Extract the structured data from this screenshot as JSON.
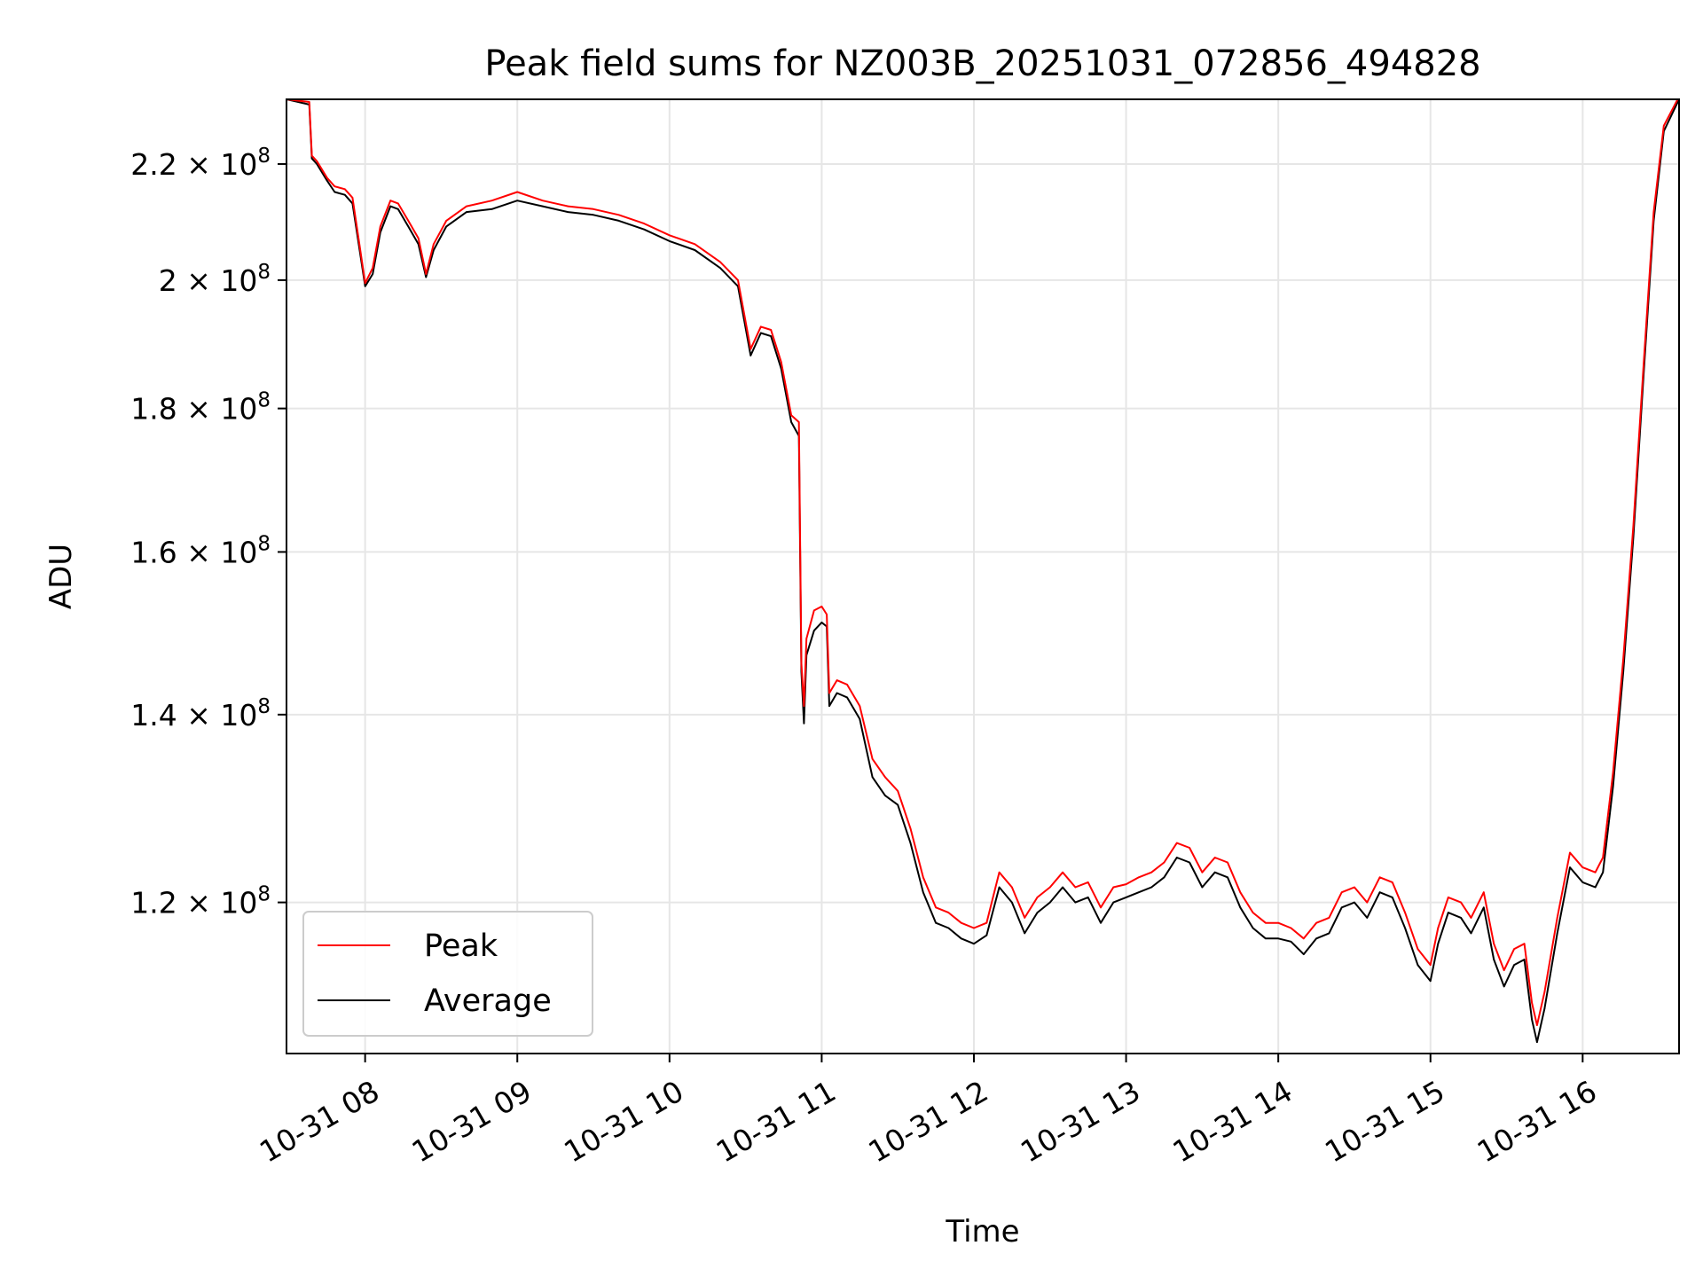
{
  "chart_data": {
    "type": "line",
    "title": "Peak field sums for NZ003B_20251031_072856_494828",
    "xlabel": "Time",
    "ylabel": "ADU",
    "y_scale": "log",
    "ylim": [
      106000000,
      232000000
    ],
    "xlim": [
      "2025-10-31T07:29",
      "2025-10-31T16:38"
    ],
    "grid": true,
    "legend_position": "lower-left",
    "x_ticks": [
      {
        "t": "2025-10-31T08:00",
        "label": "10-31 08"
      },
      {
        "t": "2025-10-31T09:00",
        "label": "10-31 09"
      },
      {
        "t": "2025-10-31T10:00",
        "label": "10-31 10"
      },
      {
        "t": "2025-10-31T11:00",
        "label": "10-31 11"
      },
      {
        "t": "2025-10-31T12:00",
        "label": "10-31 12"
      },
      {
        "t": "2025-10-31T13:00",
        "label": "10-31 13"
      },
      {
        "t": "2025-10-31T14:00",
        "label": "10-31 14"
      },
      {
        "t": "2025-10-31T15:00",
        "label": "10-31 15"
      },
      {
        "t": "2025-10-31T16:00",
        "label": "10-31 16"
      }
    ],
    "y_ticks": [
      {
        "v": 120000000,
        "mant": "1.2",
        "exp": "8"
      },
      {
        "v": 140000000,
        "mant": "1.4",
        "exp": "8"
      },
      {
        "v": 160000000,
        "mant": "1.6",
        "exp": "8"
      },
      {
        "v": 180000000,
        "mant": "1.8",
        "exp": "8"
      },
      {
        "v": 200000000,
        "mant": "2",
        "exp": "8"
      },
      {
        "v": 220000000,
        "mant": "2.2",
        "exp": "8"
      }
    ],
    "series": [
      {
        "name": "Average",
        "color": "#000000",
        "points": [
          [
            "2025-10-31T07:29",
            232000000
          ],
          [
            "2025-10-31T07:38",
            231000000
          ],
          [
            "2025-10-31T07:39",
            221000000
          ],
          [
            "2025-10-31T07:41",
            220000000
          ],
          [
            "2025-10-31T07:45",
            217000000
          ],
          [
            "2025-10-31T07:48",
            215000000
          ],
          [
            "2025-10-31T07:52",
            214500000
          ],
          [
            "2025-10-31T07:55",
            213000000
          ],
          [
            "2025-10-31T08:00",
            199000000
          ],
          [
            "2025-10-31T08:03",
            201000000
          ],
          [
            "2025-10-31T08:06",
            208000000
          ],
          [
            "2025-10-31T08:10",
            212500000
          ],
          [
            "2025-10-31T08:13",
            212000000
          ],
          [
            "2025-10-31T08:17",
            209000000
          ],
          [
            "2025-10-31T08:21",
            206000000
          ],
          [
            "2025-10-31T08:24",
            200500000
          ],
          [
            "2025-10-31T08:27",
            205000000
          ],
          [
            "2025-10-31T08:32",
            209000000
          ],
          [
            "2025-10-31T08:40",
            211500000
          ],
          [
            "2025-10-31T08:50",
            212000000
          ],
          [
            "2025-10-31T09:00",
            213500000
          ],
          [
            "2025-10-31T09:10",
            212500000
          ],
          [
            "2025-10-31T09:20",
            211500000
          ],
          [
            "2025-10-31T09:30",
            211000000
          ],
          [
            "2025-10-31T09:40",
            210000000
          ],
          [
            "2025-10-31T09:50",
            208500000
          ],
          [
            "2025-10-31T10:00",
            206500000
          ],
          [
            "2025-10-31T10:10",
            205000000
          ],
          [
            "2025-10-31T10:20",
            202000000
          ],
          [
            "2025-10-31T10:27",
            199000000
          ],
          [
            "2025-10-31T10:32",
            188000000
          ],
          [
            "2025-10-31T10:36",
            191500000
          ],
          [
            "2025-10-31T10:40",
            191000000
          ],
          [
            "2025-10-31T10:44",
            186000000
          ],
          [
            "2025-10-31T10:48",
            178000000
          ],
          [
            "2025-10-31T10:51",
            176000000
          ],
          [
            "2025-10-31T10:52",
            145000000
          ],
          [
            "2025-10-31T10:53",
            139000000
          ],
          [
            "2025-10-31T10:54",
            147000000
          ],
          [
            "2025-10-31T10:57",
            150000000
          ],
          [
            "2025-10-31T11:00",
            151000000
          ],
          [
            "2025-10-31T11:02",
            150500000
          ],
          [
            "2025-10-31T11:03",
            141000000
          ],
          [
            "2025-10-31T11:06",
            142500000
          ],
          [
            "2025-10-31T11:10",
            142000000
          ],
          [
            "2025-10-31T11:15",
            139500000
          ],
          [
            "2025-10-31T11:20",
            133000000
          ],
          [
            "2025-10-31T11:25",
            131000000
          ],
          [
            "2025-10-31T11:30",
            130000000
          ],
          [
            "2025-10-31T11:35",
            126000000
          ],
          [
            "2025-10-31T11:40",
            121000000
          ],
          [
            "2025-10-31T11:45",
            118000000
          ],
          [
            "2025-10-31T11:50",
            117500000
          ],
          [
            "2025-10-31T11:55",
            116500000
          ],
          [
            "2025-10-31T12:00",
            116000000
          ],
          [
            "2025-10-31T12:05",
            116800000
          ],
          [
            "2025-10-31T12:10",
            121500000
          ],
          [
            "2025-10-31T12:15",
            120000000
          ],
          [
            "2025-10-31T12:20",
            117000000
          ],
          [
            "2025-10-31T12:25",
            119000000
          ],
          [
            "2025-10-31T12:30",
            120000000
          ],
          [
            "2025-10-31T12:35",
            121500000
          ],
          [
            "2025-10-31T12:40",
            120000000
          ],
          [
            "2025-10-31T12:45",
            120500000
          ],
          [
            "2025-10-31T12:50",
            118000000
          ],
          [
            "2025-10-31T12:55",
            120000000
          ],
          [
            "2025-10-31T13:00",
            120500000
          ],
          [
            "2025-10-31T13:05",
            121000000
          ],
          [
            "2025-10-31T13:10",
            121500000
          ],
          [
            "2025-10-31T13:15",
            122500000
          ],
          [
            "2025-10-31T13:20",
            124500000
          ],
          [
            "2025-10-31T13:25",
            124000000
          ],
          [
            "2025-10-31T13:30",
            121500000
          ],
          [
            "2025-10-31T13:35",
            123000000
          ],
          [
            "2025-10-31T13:40",
            122500000
          ],
          [
            "2025-10-31T13:45",
            119500000
          ],
          [
            "2025-10-31T13:50",
            117500000
          ],
          [
            "2025-10-31T13:55",
            116500000
          ],
          [
            "2025-10-31T14:00",
            116500000
          ],
          [
            "2025-10-31T14:05",
            116200000
          ],
          [
            "2025-10-31T14:10",
            115000000
          ],
          [
            "2025-10-31T14:15",
            116500000
          ],
          [
            "2025-10-31T14:20",
            117000000
          ],
          [
            "2025-10-31T14:25",
            119500000
          ],
          [
            "2025-10-31T14:30",
            120000000
          ],
          [
            "2025-10-31T14:35",
            118500000
          ],
          [
            "2025-10-31T14:40",
            121000000
          ],
          [
            "2025-10-31T14:45",
            120500000
          ],
          [
            "2025-10-31T14:50",
            117500000
          ],
          [
            "2025-10-31T14:55",
            114000000
          ],
          [
            "2025-10-31T15:00",
            112500000
          ],
          [
            "2025-10-31T15:03",
            116000000
          ],
          [
            "2025-10-31T15:07",
            119000000
          ],
          [
            "2025-10-31T15:12",
            118500000
          ],
          [
            "2025-10-31T15:16",
            117000000
          ],
          [
            "2025-10-31T15:21",
            119500000
          ],
          [
            "2025-10-31T15:25",
            114500000
          ],
          [
            "2025-10-31T15:29",
            112000000
          ],
          [
            "2025-10-31T15:33",
            114000000
          ],
          [
            "2025-10-31T15:37",
            114500000
          ],
          [
            "2025-10-31T15:40",
            109000000
          ],
          [
            "2025-10-31T15:42",
            107000000
          ],
          [
            "2025-10-31T15:45",
            110000000
          ],
          [
            "2025-10-31T15:50",
            117000000
          ],
          [
            "2025-10-31T15:55",
            123500000
          ],
          [
            "2025-10-31T16:00",
            122000000
          ],
          [
            "2025-10-31T16:05",
            121500000
          ],
          [
            "2025-10-31T16:08",
            123000000
          ],
          [
            "2025-10-31T16:12",
            132000000
          ],
          [
            "2025-10-31T16:16",
            145000000
          ],
          [
            "2025-10-31T16:20",
            162000000
          ],
          [
            "2025-10-31T16:24",
            185000000
          ],
          [
            "2025-10-31T16:28",
            210000000
          ],
          [
            "2025-10-31T16:32",
            226000000
          ],
          [
            "2025-10-31T16:38",
            232000000
          ]
        ]
      },
      {
        "name": "Peak",
        "color": "#ff0000",
        "points": [
          [
            "2025-10-31T07:29",
            232000000
          ],
          [
            "2025-10-31T07:38",
            231500000
          ],
          [
            "2025-10-31T07:39",
            221500000
          ],
          [
            "2025-10-31T07:41",
            220500000
          ],
          [
            "2025-10-31T07:45",
            217500000
          ],
          [
            "2025-10-31T07:48",
            216000000
          ],
          [
            "2025-10-31T07:52",
            215500000
          ],
          [
            "2025-10-31T07:55",
            214000000
          ],
          [
            "2025-10-31T08:00",
            199500000
          ],
          [
            "2025-10-31T08:03",
            202000000
          ],
          [
            "2025-10-31T08:06",
            209000000
          ],
          [
            "2025-10-31T08:10",
            213500000
          ],
          [
            "2025-10-31T08:13",
            213000000
          ],
          [
            "2025-10-31T08:17",
            210000000
          ],
          [
            "2025-10-31T08:21",
            207000000
          ],
          [
            "2025-10-31T08:24",
            201000000
          ],
          [
            "2025-10-31T08:27",
            206000000
          ],
          [
            "2025-10-31T08:32",
            210000000
          ],
          [
            "2025-10-31T08:40",
            212500000
          ],
          [
            "2025-10-31T08:50",
            213500000
          ],
          [
            "2025-10-31T09:00",
            215000000
          ],
          [
            "2025-10-31T09:10",
            213500000
          ],
          [
            "2025-10-31T09:20",
            212500000
          ],
          [
            "2025-10-31T09:30",
            212000000
          ],
          [
            "2025-10-31T09:40",
            211000000
          ],
          [
            "2025-10-31T09:50",
            209500000
          ],
          [
            "2025-10-31T10:00",
            207500000
          ],
          [
            "2025-10-31T10:10",
            206000000
          ],
          [
            "2025-10-31T10:20",
            203000000
          ],
          [
            "2025-10-31T10:27",
            200000000
          ],
          [
            "2025-10-31T10:32",
            189000000
          ],
          [
            "2025-10-31T10:36",
            192500000
          ],
          [
            "2025-10-31T10:40",
            192000000
          ],
          [
            "2025-10-31T10:44",
            187000000
          ],
          [
            "2025-10-31T10:48",
            179000000
          ],
          [
            "2025-10-31T10:51",
            178000000
          ],
          [
            "2025-10-31T10:52",
            146000000
          ],
          [
            "2025-10-31T10:53",
            141000000
          ],
          [
            "2025-10-31T10:54",
            149000000
          ],
          [
            "2025-10-31T10:57",
            152500000
          ],
          [
            "2025-10-31T11:00",
            153000000
          ],
          [
            "2025-10-31T11:02",
            152000000
          ],
          [
            "2025-10-31T11:03",
            142500000
          ],
          [
            "2025-10-31T11:06",
            144000000
          ],
          [
            "2025-10-31T11:10",
            143500000
          ],
          [
            "2025-10-31T11:15",
            141000000
          ],
          [
            "2025-10-31T11:20",
            135000000
          ],
          [
            "2025-10-31T11:25",
            133000000
          ],
          [
            "2025-10-31T11:30",
            131500000
          ],
          [
            "2025-10-31T11:35",
            127500000
          ],
          [
            "2025-10-31T11:40",
            122500000
          ],
          [
            "2025-10-31T11:45",
            119500000
          ],
          [
            "2025-10-31T11:50",
            119000000
          ],
          [
            "2025-10-31T11:55",
            118000000
          ],
          [
            "2025-10-31T12:00",
            117500000
          ],
          [
            "2025-10-31T12:05",
            118000000
          ],
          [
            "2025-10-31T12:10",
            123000000
          ],
          [
            "2025-10-31T12:15",
            121500000
          ],
          [
            "2025-10-31T12:20",
            118500000
          ],
          [
            "2025-10-31T12:25",
            120500000
          ],
          [
            "2025-10-31T12:30",
            121500000
          ],
          [
            "2025-10-31T12:35",
            123000000
          ],
          [
            "2025-10-31T12:40",
            121500000
          ],
          [
            "2025-10-31T12:45",
            122000000
          ],
          [
            "2025-10-31T12:50",
            119500000
          ],
          [
            "2025-10-31T12:55",
            121500000
          ],
          [
            "2025-10-31T13:00",
            121800000
          ],
          [
            "2025-10-31T13:05",
            122500000
          ],
          [
            "2025-10-31T13:10",
            123000000
          ],
          [
            "2025-10-31T13:15",
            124000000
          ],
          [
            "2025-10-31T13:20",
            126000000
          ],
          [
            "2025-10-31T13:25",
            125500000
          ],
          [
            "2025-10-31T13:30",
            123000000
          ],
          [
            "2025-10-31T13:35",
            124500000
          ],
          [
            "2025-10-31T13:40",
            124000000
          ],
          [
            "2025-10-31T13:45",
            121000000
          ],
          [
            "2025-10-31T13:50",
            119000000
          ],
          [
            "2025-10-31T13:55",
            118000000
          ],
          [
            "2025-10-31T14:00",
            118000000
          ],
          [
            "2025-10-31T14:05",
            117500000
          ],
          [
            "2025-10-31T14:10",
            116500000
          ],
          [
            "2025-10-31T14:15",
            118000000
          ],
          [
            "2025-10-31T14:20",
            118500000
          ],
          [
            "2025-10-31T14:25",
            121000000
          ],
          [
            "2025-10-31T14:30",
            121500000
          ],
          [
            "2025-10-31T14:35",
            120000000
          ],
          [
            "2025-10-31T14:40",
            122500000
          ],
          [
            "2025-10-31T14:45",
            122000000
          ],
          [
            "2025-10-31T14:50",
            119000000
          ],
          [
            "2025-10-31T14:55",
            115500000
          ],
          [
            "2025-10-31T15:00",
            114000000
          ],
          [
            "2025-10-31T15:03",
            117500000
          ],
          [
            "2025-10-31T15:07",
            120500000
          ],
          [
            "2025-10-31T15:12",
            120000000
          ],
          [
            "2025-10-31T15:16",
            118500000
          ],
          [
            "2025-10-31T15:21",
            121000000
          ],
          [
            "2025-10-31T15:25",
            116000000
          ],
          [
            "2025-10-31T15:29",
            113500000
          ],
          [
            "2025-10-31T15:33",
            115500000
          ],
          [
            "2025-10-31T15:37",
            116000000
          ],
          [
            "2025-10-31T15:40",
            110500000
          ],
          [
            "2025-10-31T15:42",
            108500000
          ],
          [
            "2025-10-31T15:45",
            111500000
          ],
          [
            "2025-10-31T15:50",
            118500000
          ],
          [
            "2025-10-31T15:55",
            125000000
          ],
          [
            "2025-10-31T16:00",
            123500000
          ],
          [
            "2025-10-31T16:05",
            123000000
          ],
          [
            "2025-10-31T16:08",
            124500000
          ],
          [
            "2025-10-31T16:12",
            133500000
          ],
          [
            "2025-10-31T16:16",
            146500000
          ],
          [
            "2025-10-31T16:20",
            163500000
          ],
          [
            "2025-10-31T16:24",
            186500000
          ],
          [
            "2025-10-31T16:28",
            211500000
          ],
          [
            "2025-10-31T16:32",
            227000000
          ],
          [
            "2025-10-31T16:38",
            232500000
          ]
        ]
      }
    ]
  }
}
